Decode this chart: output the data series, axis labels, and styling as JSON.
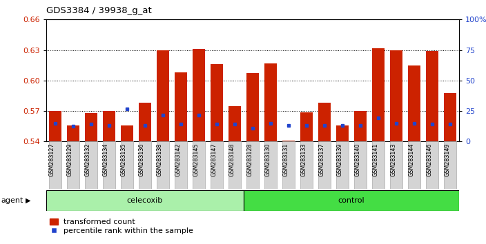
{
  "title": "GDS3384 / 39938_g_at",
  "samples": [
    "GSM283127",
    "GSM283129",
    "GSM283132",
    "GSM283134",
    "GSM283135",
    "GSM283136",
    "GSM283138",
    "GSM283142",
    "GSM283145",
    "GSM283147",
    "GSM283148",
    "GSM283128",
    "GSM283130",
    "GSM283131",
    "GSM283133",
    "GSM283137",
    "GSM283139",
    "GSM283140",
    "GSM283141",
    "GSM283143",
    "GSM283144",
    "GSM283146",
    "GSM283149"
  ],
  "red_values": [
    0.57,
    0.556,
    0.568,
    0.57,
    0.556,
    0.578,
    0.63,
    0.608,
    0.631,
    0.616,
    0.575,
    0.607,
    0.617,
    0.541,
    0.569,
    0.578,
    0.556,
    0.57,
    0.632,
    0.63,
    0.615,
    0.629,
    0.588
  ],
  "blue_values": [
    0.558,
    0.555,
    0.557,
    0.556,
    0.572,
    0.556,
    0.566,
    0.557,
    0.566,
    0.557,
    0.557,
    0.553,
    0.558,
    0.556,
    0.556,
    0.556,
    0.556,
    0.556,
    0.563,
    0.558,
    0.558,
    0.557,
    0.557
  ],
  "celecoxib_count": 11,
  "control_count": 12,
  "ymin": 0.54,
  "ymax": 0.66,
  "yticks_left": [
    0.54,
    0.57,
    0.6,
    0.63,
    0.66
  ],
  "right_yticks_pct": [
    0,
    25,
    50,
    75,
    100
  ],
  "bar_color": "#cc2200",
  "dot_color": "#2244cc",
  "celecoxib_color": "#aaf0aa",
  "control_color": "#44dd44",
  "tickbg_color": "#d4d4d4",
  "tickborder_color": "#aaaaaa",
  "grid_color": "#000000",
  "legend_red": "#cc2200",
  "legend_blue": "#2244cc"
}
